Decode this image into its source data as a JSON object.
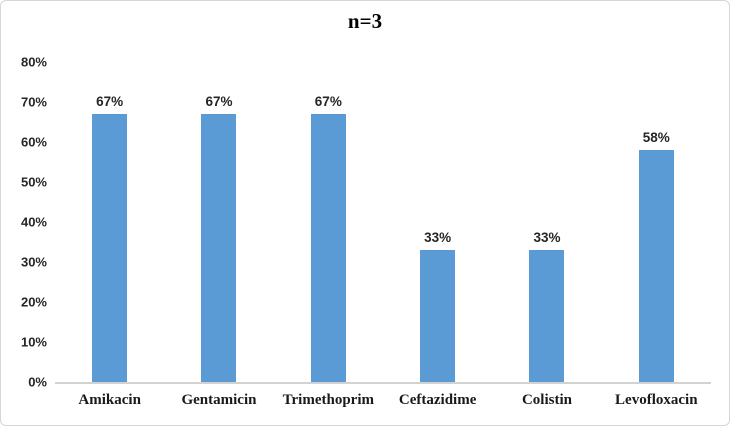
{
  "chart_data": {
    "type": "bar",
    "title": "n=3",
    "categories": [
      "Amikacin",
      "Gentamicin",
      "Trimethoprim",
      "Ceftazidime",
      "Colistin",
      "Levofloxacin"
    ],
    "values": [
      67,
      67,
      67,
      33,
      33,
      58
    ],
    "data_labels": [
      "67%",
      "67%",
      "67%",
      "33%",
      "33%",
      "58%"
    ],
    "y_ticks": [
      "0%",
      "10%",
      "20%",
      "30%",
      "40%",
      "50%",
      "60%",
      "70%",
      "80%"
    ],
    "ylim": [
      0,
      80
    ],
    "xlabel": "",
    "ylabel": "",
    "grid": false,
    "legend": "none",
    "bar_color": "#5B9BD5",
    "axis_line_color": "#d2d2d2",
    "text_color": "#262626",
    "border_color": "#d6d6d6"
  }
}
